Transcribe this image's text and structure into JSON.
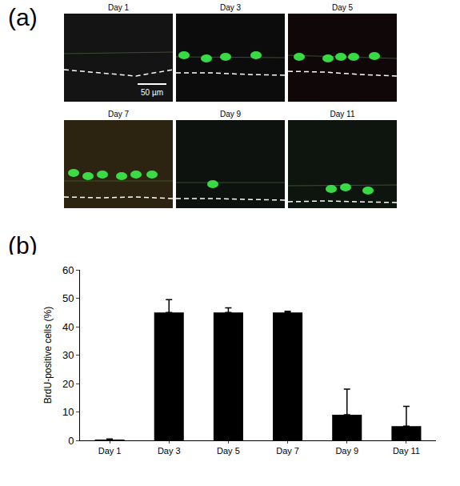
{
  "panel_labels": [
    "(a)",
    "(b)"
  ],
  "images": {
    "titles": [
      "Day 1",
      "Day 3",
      "Day 5",
      "Day 7",
      "Day 9",
      "Day 11"
    ],
    "scale_bar": "50 µm"
  },
  "chart_data": {
    "type": "bar",
    "categories": [
      "Day 1",
      "Day 3",
      "Day 5",
      "Day 7",
      "Day 9",
      "Day 11"
    ],
    "values": [
      0.3,
      45,
      45,
      45,
      9,
      5
    ],
    "error": [
      0.2,
      4.5,
      1.6,
      0.4,
      9,
      7
    ],
    "color": "#000000",
    "y_label": "BrdU-positive cells (%)",
    "ylim": [
      0,
      60
    ],
    "yticks": [
      0,
      10,
      20,
      30,
      40,
      50,
      60
    ],
    "grid": false
  }
}
